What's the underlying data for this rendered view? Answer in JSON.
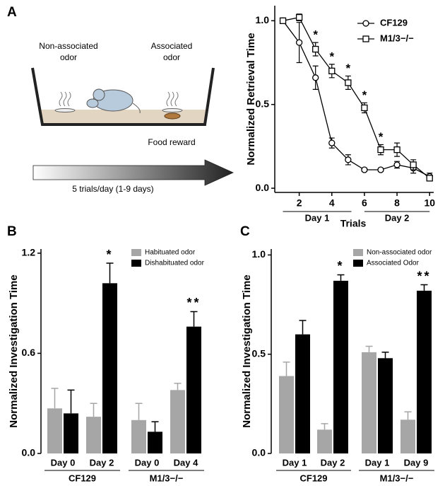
{
  "panel_labels": [
    "A",
    "B",
    "C"
  ],
  "diagram": {
    "non_associated_odor": [
      "Non-associated",
      "odor"
    ],
    "associated_odor": [
      "Associated",
      "odor"
    ],
    "food_reward": "Food reward",
    "arrow_label": "5 trials/day (1-9 days)"
  },
  "chart_data": [
    {
      "type": "line",
      "y_label": "Normalized Retrieval Time",
      "x_label": "Trials",
      "x": [
        1,
        2,
        3,
        4,
        5,
        6,
        7,
        8,
        9,
        10
      ],
      "day_labels": [
        "Day 1",
        "Day 2"
      ],
      "series": [
        {
          "name": "CF129",
          "color": "#000000",
          "marker": "circle",
          "values": [
            1.0,
            0.87,
            0.66,
            0.27,
            0.17,
            0.11,
            0.11,
            0.14,
            0.12,
            0.07
          ],
          "errors": [
            0.01,
            0.12,
            0.07,
            0.03,
            0.03,
            0.01,
            0.01,
            0.02,
            0.03,
            0.02
          ],
          "significance": [
            null,
            null,
            null,
            null,
            null,
            null,
            null,
            null,
            null,
            null
          ]
        },
        {
          "name": "M1/3−/−",
          "color": "#000000",
          "marker": "square",
          "values": [
            1.0,
            1.02,
            0.83,
            0.7,
            0.63,
            0.48,
            0.23,
            0.23,
            0.14,
            0.06
          ],
          "errors": [
            0.01,
            0.02,
            0.04,
            0.04,
            0.04,
            0.03,
            0.03,
            0.04,
            0.03,
            0.01
          ],
          "significance": [
            null,
            null,
            "*",
            "*",
            "*",
            "*",
            "*",
            null,
            null,
            null
          ]
        }
      ],
      "xlim": [
        0.5,
        10.25
      ],
      "xticks": [
        2,
        4,
        6,
        8,
        10
      ],
      "ylim": [
        -0.025,
        1.09
      ],
      "yticks": [
        {
          "value": 0,
          "label": "0.0"
        },
        0.5,
        {
          "value": 1,
          "label": "1.0"
        }
      ],
      "legend": "upper right"
    },
    {
      "type": "bar",
      "y_label": "Normalized Investigation Time",
      "categories": [
        "Day 0",
        "Day 2",
        "Day 0",
        "Day 4"
      ],
      "groups": [
        "CF129",
        "M1/3−/−"
      ],
      "series": [
        {
          "name": "Habituated odor",
          "color": "#a6a6a6",
          "values": [
            0.27,
            0.22,
            0.2,
            0.38
          ],
          "errors": [
            0.12,
            0.08,
            0.1,
            0.04
          ],
          "significance": [
            null,
            null,
            null,
            null
          ]
        },
        {
          "name": "Dishabituated odor",
          "color": "#000000",
          "values": [
            0.24,
            1.02,
            0.13,
            0.76
          ],
          "errors": [
            0.14,
            0.12,
            0.06,
            0.09
          ],
          "significance": [
            null,
            "*",
            null,
            "**"
          ]
        }
      ],
      "ylim": [
        0,
        1.225
      ],
      "yticks": [
        {
          "value": 0,
          "label": "0.0"
        },
        0.6,
        1.2
      ],
      "legend": "upper center"
    },
    {
      "type": "bar",
      "y_label": "Normalized Investigation Time",
      "categories": [
        "Day 1",
        "Day 2",
        "Day 1",
        "Day 9"
      ],
      "groups": [
        "CF129",
        "M1/3−/−"
      ],
      "series": [
        {
          "name": "Non-associated odor",
          "color": "#a6a6a6",
          "values": [
            0.39,
            0.12,
            0.51,
            0.17
          ],
          "errors": [
            0.07,
            0.03,
            0.03,
            0.04
          ],
          "significance": [
            null,
            null,
            null,
            null
          ]
        },
        {
          "name": "Associated Odor",
          "color": "#000000",
          "values": [
            0.6,
            0.87,
            0.48,
            0.82
          ],
          "errors": [
            0.07,
            0.03,
            0.03,
            0.03
          ],
          "significance": [
            null,
            "*",
            null,
            "**"
          ]
        }
      ],
      "ylim": [
        0,
        1.03
      ],
      "yticks": [
        {
          "value": 0,
          "label": "0.0"
        },
        0.5,
        {
          "value": 1,
          "label": "1.0"
        }
      ],
      "legend": "upper right"
    }
  ]
}
